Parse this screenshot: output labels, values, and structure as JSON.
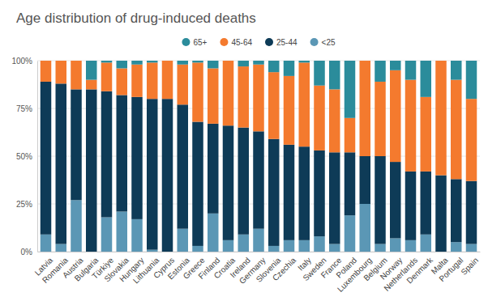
{
  "chart_data": {
    "type": "bar",
    "stacked": true,
    "title": "Age distribution of drug-induced deaths",
    "categories": [
      "Latvia",
      "Romania",
      "Austria",
      "Bulgaria",
      "Türkiye",
      "Slovakia",
      "Hungary",
      "Lithuania",
      "Cyprus",
      "Estonia",
      "Greece",
      "Finland",
      "Croatia",
      "Ireland",
      "Germany",
      "Slovenia",
      "Czechia",
      "Italy",
      "Sweden",
      "France",
      "Poland",
      "Luxembourg",
      "Belgium",
      "Norway",
      "Netherlands",
      "Denmark",
      "Malta",
      "Portugal",
      "Spain"
    ],
    "series": [
      {
        "name": "<25",
        "color": "#5b97b5",
        "values": [
          9,
          4,
          27,
          0,
          18,
          21,
          17,
          1,
          0,
          12,
          3,
          20,
          6,
          9,
          12,
          3,
          6,
          6,
          8,
          4,
          19,
          25,
          4,
          7,
          6,
          9,
          0,
          5,
          4
        ]
      },
      {
        "name": "25-44",
        "color": "#0e3b57",
        "values": [
          80,
          84,
          58,
          85,
          66,
          61,
          64,
          79,
          80,
          65,
          65,
          47,
          60,
          56,
          51,
          56,
          50,
          49,
          45,
          48,
          33,
          25,
          46,
          40,
          36,
          33,
          40,
          33,
          33
        ]
      },
      {
        "name": "45-64",
        "color": "#f47a2e",
        "values": [
          11,
          12,
          15,
          5,
          15,
          14,
          17,
          19,
          20,
          21,
          31,
          29,
          34,
          32,
          35,
          35,
          36,
          44,
          34,
          33,
          18,
          50,
          39,
          48,
          48,
          39,
          60,
          52,
          43
        ]
      },
      {
        "name": "65+",
        "color": "#2b8c9b",
        "values": [
          0,
          0,
          0,
          10,
          1,
          4,
          2,
          1,
          0,
          2,
          1,
          4,
          0,
          3,
          2,
          6,
          8,
          1,
          13,
          15,
          30,
          0,
          11,
          5,
          10,
          19,
          0,
          10,
          20
        ]
      }
    ],
    "ylim": [
      0,
      100
    ],
    "yticks": [
      {
        "value": 0,
        "label": "0%"
      },
      {
        "value": 25,
        "label": "25%"
      },
      {
        "value": 50,
        "label": "50%"
      },
      {
        "value": 75,
        "label": "75%"
      },
      {
        "value": 100,
        "label": "100%"
      }
    ],
    "grid": true,
    "legend": "top"
  }
}
